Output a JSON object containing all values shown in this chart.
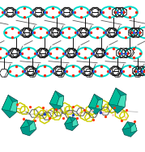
{
  "figsize": [
    1.79,
    1.88
  ],
  "dpi": 100,
  "bg_color": "#ffffff",
  "top": {
    "black": "#111111",
    "cyan": "#00ddcc",
    "red": "#ff2200",
    "blue": "#2255ff",
    "bg": "#f0ede8"
  },
  "bottom": {
    "teal_dark": "#009988",
    "teal_med": "#00bb99",
    "teal_light": "#44ddbb",
    "yellow": "#cccc00",
    "gray": "#555555",
    "red": "#ff3300",
    "blue": "#2244bb",
    "pink": "#ffaaaa",
    "bg": "#f5f5f0"
  }
}
